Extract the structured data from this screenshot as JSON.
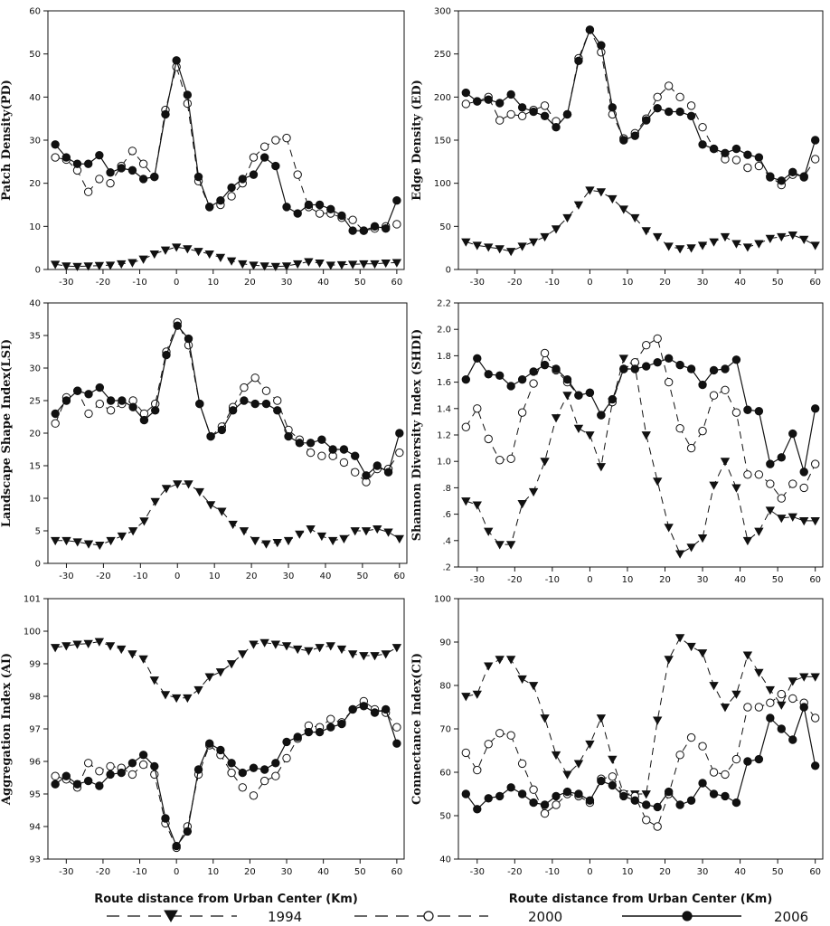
{
  "chart_data": [
    {
      "type": "line",
      "ylabel": "Patch Density(PD)",
      "xlabel": "",
      "ylim": [
        0,
        60
      ],
      "yticks": [
        0,
        10,
        20,
        30,
        40,
        50,
        60
      ],
      "xlim": [
        -35,
        62
      ],
      "xticks": [
        -30,
        -20,
        -10,
        0,
        10,
        20,
        30,
        40,
        50,
        60
      ],
      "x": [
        -33,
        -30,
        -27,
        -24,
        -21,
        -18,
        -15,
        -12,
        -9,
        -6,
        -3,
        0,
        3,
        6,
        9,
        12,
        15,
        18,
        21,
        24,
        27,
        30,
        33,
        36,
        39,
        42,
        45,
        48,
        51,
        54,
        57,
        60
      ],
      "series": [
        {
          "name": "1994",
          "values": [
            1.2,
            0.8,
            0.7,
            0.8,
            0.9,
            1.0,
            1.3,
            1.6,
            2.4,
            3.6,
            4.5,
            5.2,
            4.8,
            4.2,
            3.6,
            2.8,
            2.0,
            1.3,
            1.0,
            0.8,
            0.7,
            0.8,
            1.3,
            1.8,
            1.5,
            1.0,
            1.1,
            1.2,
            1.3,
            1.3,
            1.5,
            1.6
          ]
        },
        {
          "name": "2000",
          "values": [
            26.0,
            25.5,
            23.0,
            18.0,
            21.0,
            20.0,
            24.0,
            27.5,
            24.5,
            21.5,
            37.0,
            47.0,
            38.5,
            20.5,
            14.5,
            15.0,
            17.0,
            20.0,
            26.0,
            28.5,
            30.0,
            30.5,
            22.0,
            14.5,
            13.0,
            13.0,
            12.0,
            11.5,
            9.0,
            9.5,
            10.0,
            10.5
          ]
        },
        {
          "name": "2006",
          "values": [
            29.0,
            26.0,
            24.5,
            24.5,
            26.5,
            22.5,
            23.5,
            23.0,
            21.0,
            21.5,
            36.0,
            48.5,
            40.5,
            21.5,
            14.5,
            16.0,
            19.0,
            21.0,
            22.0,
            26.0,
            24.0,
            14.5,
            13.0,
            15.0,
            15.0,
            14.0,
            12.5,
            9.0,
            9.0,
            10.0,
            9.5,
            16.0
          ]
        }
      ]
    },
    {
      "type": "line",
      "ylabel": "Edge Density (ED)",
      "xlabel": "",
      "ylim": [
        0,
        300
      ],
      "yticks": [
        0,
        50,
        100,
        150,
        200,
        250,
        300
      ],
      "xlim": [
        -35,
        62
      ],
      "xticks": [
        -30,
        -20,
        -10,
        0,
        10,
        20,
        30,
        40,
        50,
        60
      ],
      "x": [
        -33,
        -30,
        -27,
        -24,
        -21,
        -18,
        -15,
        -12,
        -9,
        -6,
        -3,
        0,
        3,
        6,
        9,
        12,
        15,
        18,
        21,
        24,
        27,
        30,
        33,
        36,
        39,
        42,
        45,
        48,
        51,
        54,
        57,
        60
      ],
      "series": [
        {
          "name": "1994",
          "values": [
            32,
            28,
            26,
            24,
            21,
            27,
            32,
            38,
            47,
            60,
            75,
            92,
            90,
            82,
            70,
            60,
            45,
            38,
            27,
            24,
            25,
            28,
            32,
            38,
            30,
            26,
            30,
            36,
            38,
            40,
            35,
            28
          ]
        },
        {
          "name": "2000",
          "values": [
            192,
            195,
            200,
            173,
            180,
            178,
            185,
            190,
            172,
            180,
            245,
            278,
            252,
            180,
            152,
            158,
            175,
            200,
            213,
            200,
            190,
            165,
            140,
            128,
            127,
            118,
            120,
            108,
            98,
            110,
            108,
            128
          ]
        },
        {
          "name": "2006",
          "values": [
            205,
            195,
            197,
            193,
            203,
            188,
            183,
            178,
            165,
            180,
            242,
            278,
            260,
            188,
            150,
            155,
            173,
            187,
            183,
            183,
            178,
            145,
            140,
            135,
            140,
            133,
            130,
            107,
            103,
            113,
            107,
            150
          ]
        }
      ]
    },
    {
      "type": "line",
      "ylabel": "Landscape Shape Index(LSI)",
      "xlabel": "",
      "ylim": [
        0,
        40
      ],
      "yticks": [
        0,
        5,
        10,
        15,
        20,
        25,
        30,
        35,
        40
      ],
      "xlim": [
        -35,
        62
      ],
      "xticks": [
        -30,
        -20,
        -10,
        0,
        10,
        20,
        30,
        40,
        50,
        60
      ],
      "x": [
        -33,
        -30,
        -27,
        -24,
        -21,
        -18,
        -15,
        -12,
        -9,
        -6,
        -3,
        0,
        3,
        6,
        9,
        12,
        15,
        18,
        21,
        24,
        27,
        30,
        33,
        36,
        39,
        42,
        45,
        48,
        51,
        54,
        57,
        60
      ],
      "series": [
        {
          "name": "1994",
          "values": [
            3.5,
            3.5,
            3.3,
            3.0,
            2.8,
            3.5,
            4.2,
            5.0,
            6.5,
            9.5,
            11.5,
            12.2,
            12.2,
            11.0,
            9.0,
            8.0,
            6.0,
            5.0,
            3.5,
            3.0,
            3.2,
            3.5,
            4.5,
            5.3,
            4.2,
            3.5,
            3.8,
            5.0,
            5.0,
            5.3,
            4.8,
            3.8
          ]
        },
        {
          "name": "2000",
          "values": [
            21.5,
            25.5,
            26.5,
            23.0,
            24.5,
            23.5,
            24.5,
            25.0,
            23.0,
            24.5,
            32.5,
            37.0,
            33.5,
            24.5,
            19.5,
            21.0,
            24.0,
            27.0,
            28.5,
            26.5,
            25.0,
            20.5,
            19.0,
            17.0,
            16.5,
            16.5,
            15.5,
            14.0,
            12.5,
            14.5,
            14.5,
            17.0
          ]
        },
        {
          "name": "2006",
          "values": [
            23.0,
            25.0,
            26.5,
            26.0,
            27.0,
            25.0,
            25.0,
            24.0,
            22.0,
            23.5,
            32.0,
            36.5,
            34.5,
            24.5,
            19.5,
            20.5,
            23.5,
            25.0,
            24.5,
            24.5,
            23.5,
            19.5,
            18.5,
            18.5,
            19.0,
            17.5,
            17.5,
            16.5,
            13.5,
            15.0,
            14.0,
            20.0
          ]
        }
      ]
    },
    {
      "type": "line",
      "ylabel": "Shannon Diversity Index (SHDI)",
      "xlabel": "",
      "ylim": [
        0.2,
        2.2
      ],
      "yticks": [
        0.2,
        0.4,
        0.6,
        0.8,
        1.0,
        1.2,
        1.4,
        1.6,
        1.8,
        2.0,
        2.2
      ],
      "ytick_labels": [
        ".2",
        ".4",
        ".6",
        ".8",
        "1.0",
        "1.2",
        "1.4",
        "1.6",
        "1.8",
        "2.0",
        "2.2"
      ],
      "xlim": [
        -35,
        62
      ],
      "xticks": [
        -30,
        -20,
        -10,
        0,
        10,
        20,
        30,
        40,
        50,
        60
      ],
      "x": [
        -33,
        -30,
        -27,
        -24,
        -21,
        -18,
        -15,
        -12,
        -9,
        -6,
        -3,
        0,
        3,
        6,
        9,
        12,
        15,
        18,
        21,
        24,
        27,
        30,
        33,
        36,
        39,
        42,
        45,
        48,
        51,
        54,
        57,
        60
      ],
      "series": [
        {
          "name": "1994",
          "values": [
            0.7,
            0.67,
            0.47,
            0.37,
            0.37,
            0.68,
            0.77,
            1.0,
            1.33,
            1.5,
            1.25,
            1.2,
            0.96,
            1.45,
            1.78,
            1.72,
            1.2,
            0.85,
            0.5,
            0.3,
            0.35,
            0.42,
            0.82,
            1.0,
            0.8,
            0.4,
            0.47,
            0.63,
            0.57,
            0.58,
            0.55,
            0.55
          ]
        },
        {
          "name": "2000",
          "values": [
            1.26,
            1.4,
            1.17,
            1.01,
            1.02,
            1.37,
            1.59,
            1.82,
            1.69,
            1.6,
            1.5,
            1.52,
            1.35,
            1.45,
            1.7,
            1.75,
            1.88,
            1.93,
            1.6,
            1.25,
            1.1,
            1.23,
            1.5,
            1.54,
            1.37,
            0.9,
            0.9,
            0.83,
            0.72,
            0.83,
            0.8,
            0.98
          ]
        },
        {
          "name": "2006",
          "values": [
            1.62,
            1.78,
            1.66,
            1.65,
            1.57,
            1.62,
            1.68,
            1.73,
            1.7,
            1.62,
            1.5,
            1.52,
            1.35,
            1.47,
            1.7,
            1.7,
            1.72,
            1.75,
            1.78,
            1.73,
            1.7,
            1.58,
            1.69,
            1.7,
            1.77,
            1.39,
            1.38,
            0.98,
            1.03,
            1.21,
            0.92,
            1.4
          ]
        }
      ]
    },
    {
      "type": "line",
      "ylabel": "Aggregation Index (AI)",
      "xlabel": "Route distance from Urban Center (Km)",
      "ylim": [
        93,
        101
      ],
      "yticks": [
        93,
        94,
        95,
        96,
        97,
        98,
        99,
        100,
        101
      ],
      "xlim": [
        -35,
        62
      ],
      "xticks": [
        -30,
        -20,
        -10,
        0,
        10,
        20,
        30,
        40,
        50,
        60
      ],
      "x": [
        -33,
        -30,
        -27,
        -24,
        -21,
        -18,
        -15,
        -12,
        -9,
        -6,
        -3,
        0,
        3,
        6,
        9,
        12,
        15,
        18,
        21,
        24,
        27,
        30,
        33,
        36,
        39,
        42,
        45,
        48,
        51,
        54,
        57,
        60
      ],
      "series": [
        {
          "name": "1994",
          "values": [
            99.5,
            99.55,
            99.6,
            99.62,
            99.68,
            99.55,
            99.45,
            99.3,
            99.15,
            98.5,
            98.05,
            97.95,
            97.95,
            98.2,
            98.6,
            98.75,
            99.0,
            99.3,
            99.6,
            99.65,
            99.6,
            99.55,
            99.45,
            99.4,
            99.5,
            99.55,
            99.45,
            99.3,
            99.25,
            99.25,
            99.3,
            99.5
          ]
        },
        {
          "name": "2000",
          "values": [
            95.55,
            95.45,
            95.2,
            95.95,
            95.7,
            95.85,
            95.8,
            95.6,
            95.9,
            95.6,
            94.1,
            93.35,
            94.0,
            95.6,
            96.5,
            96.2,
            95.65,
            95.2,
            94.95,
            95.4,
            95.55,
            96.1,
            96.7,
            97.1,
            97.05,
            97.3,
            97.2,
            97.6,
            97.85,
            97.6,
            97.5,
            97.05
          ]
        },
        {
          "name": "2006",
          "values": [
            95.3,
            95.55,
            95.3,
            95.4,
            95.25,
            95.6,
            95.65,
            95.95,
            96.2,
            95.85,
            94.25,
            93.4,
            93.85,
            95.75,
            96.55,
            96.35,
            95.95,
            95.65,
            95.8,
            95.75,
            95.95,
            96.6,
            96.75,
            96.9,
            96.9,
            97.05,
            97.15,
            97.6,
            97.7,
            97.5,
            97.6,
            96.55
          ]
        }
      ]
    },
    {
      "type": "line",
      "ylabel": "Connectance Index(CI)",
      "xlabel": "Route distance from Urban Center (Km)",
      "ylim": [
        40,
        100
      ],
      "yticks": [
        40,
        50,
        60,
        70,
        80,
        90,
        100
      ],
      "xlim": [
        -35,
        62
      ],
      "xticks": [
        -30,
        -20,
        -10,
        0,
        10,
        20,
        30,
        40,
        50,
        60
      ],
      "x": [
        -33,
        -30,
        -27,
        -24,
        -21,
        -18,
        -15,
        -12,
        -9,
        -6,
        -3,
        0,
        3,
        6,
        9,
        12,
        15,
        18,
        21,
        24,
        27,
        30,
        33,
        36,
        39,
        42,
        45,
        48,
        51,
        54,
        57,
        60
      ],
      "series": [
        {
          "name": "1994",
          "values": [
            77.5,
            78.0,
            84.5,
            86.0,
            86.0,
            81.5,
            80.0,
            72.5,
            64.0,
            59.5,
            62.0,
            66.5,
            72.5,
            63.0,
            55.0,
            55.0,
            55.0,
            72.0,
            86.0,
            91.0,
            89.0,
            87.5,
            80.0,
            75.0,
            78.0,
            87.0,
            83.0,
            79.0,
            75.5,
            81.0,
            82.0,
            82.0
          ]
        },
        {
          "name": "2000",
          "values": [
            64.5,
            60.5,
            66.5,
            69.0,
            68.5,
            62.0,
            56.0,
            50.5,
            52.5,
            55.0,
            54.5,
            53.0,
            58.5,
            59.0,
            55.0,
            54.5,
            49.0,
            47.5,
            55.0,
            64.0,
            68.0,
            66.0,
            60.0,
            59.5,
            63.0,
            75.0,
            75.0,
            76.0,
            78.0,
            77.0,
            76.0,
            72.5
          ]
        },
        {
          "name": "2006",
          "values": [
            55.0,
            51.5,
            54.0,
            54.5,
            56.5,
            55.0,
            53.0,
            52.5,
            54.5,
            55.5,
            55.0,
            53.5,
            58.0,
            57.0,
            54.5,
            53.5,
            52.5,
            52.0,
            55.5,
            52.5,
            53.5,
            57.5,
            55.0,
            54.5,
            53.0,
            62.5,
            63.0,
            72.5,
            70.0,
            67.5,
            75.0,
            61.5
          ]
        }
      ]
    }
  ],
  "legend": {
    "placement": "bottom",
    "items": [
      {
        "label": "1994",
        "marker": "triangle-down",
        "line": "dashed"
      },
      {
        "label": "2000",
        "marker": "circle-open",
        "line": "dashed"
      },
      {
        "label": "2006",
        "marker": "circle-filled",
        "line": "solid"
      }
    ]
  }
}
